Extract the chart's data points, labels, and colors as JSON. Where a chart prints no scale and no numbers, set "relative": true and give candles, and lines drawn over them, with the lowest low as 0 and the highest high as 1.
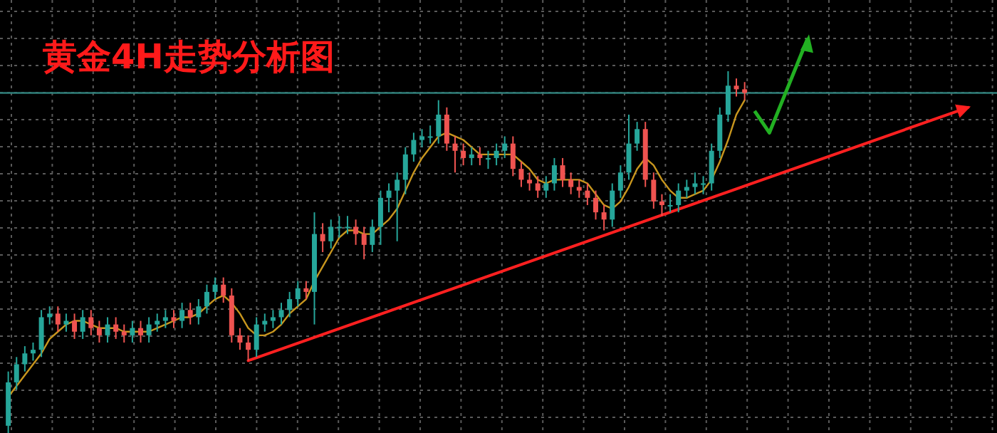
{
  "chart_data": {
    "type": "candlestick",
    "title": "黄金4H走势分析图",
    "relative": true,
    "grid": true,
    "categories": [
      null,
      null,
      null,
      null,
      null,
      null,
      null,
      null,
      null,
      null,
      null,
      null,
      null,
      null,
      null,
      null,
      null,
      null,
      null,
      null,
      null,
      null,
      null,
      null,
      null,
      null,
      null,
      null,
      null,
      null,
      null,
      null,
      null,
      null,
      null,
      null,
      null,
      null,
      null,
      null,
      null,
      null,
      null,
      null,
      null,
      null,
      null,
      null,
      null,
      null,
      null,
      null,
      null,
      null,
      null,
      null,
      null,
      null,
      null,
      null,
      null,
      null,
      null,
      null,
      null,
      null,
      null,
      null,
      null,
      null,
      null,
      null,
      null,
      null,
      null,
      null,
      null,
      null,
      null,
      null,
      null,
      null,
      null,
      null,
      null,
      null,
      null,
      null,
      null,
      null,
      null,
      null,
      null,
      null,
      null,
      null,
      null,
      null,
      null,
      null,
      null,
      null,
      null,
      null,
      null,
      null,
      null,
      null,
      null,
      null,
      null,
      null,
      null,
      null,
      null,
      null,
      null,
      null
    ],
    "ohlc": [
      [
        0.02,
        0.17,
        0,
        0.14
      ],
      [
        0.14,
        0.21,
        0.12,
        0.19
      ],
      [
        0.19,
        0.24,
        0.17,
        0.22
      ],
      [
        0.22,
        0.25,
        0.2,
        0.23
      ],
      [
        0.23,
        0.34,
        0.21,
        0.32
      ],
      [
        0.32,
        0.35,
        0.3,
        0.33
      ],
      [
        0.33,
        0.35,
        0.28,
        0.3
      ],
      [
        0.3,
        0.33,
        0.28,
        0.31
      ],
      [
        0.31,
        0.33,
        0.26,
        0.28
      ],
      [
        0.28,
        0.34,
        0.26,
        0.32
      ],
      [
        0.32,
        0.34,
        0.27,
        0.29
      ],
      [
        0.29,
        0.31,
        0.25,
        0.27
      ],
      [
        0.27,
        0.32,
        0.25,
        0.3
      ],
      [
        0.3,
        0.32,
        0.26,
        0.28
      ],
      [
        0.28,
        0.3,
        0.25,
        0.27
      ],
      [
        0.27,
        0.31,
        0.25,
        0.29
      ],
      [
        0.29,
        0.31,
        0.25,
        0.27
      ],
      [
        0.27,
        0.32,
        0.25,
        0.3
      ],
      [
        0.3,
        0.33,
        0.28,
        0.31
      ],
      [
        0.31,
        0.34,
        0.29,
        0.32
      ],
      [
        0.32,
        0.34,
        0.29,
        0.31
      ],
      [
        0.31,
        0.36,
        0.29,
        0.34
      ],
      [
        0.34,
        0.36,
        0.3,
        0.32
      ],
      [
        0.32,
        0.37,
        0.3,
        0.35
      ],
      [
        0.35,
        0.41,
        0.33,
        0.39
      ],
      [
        0.39,
        0.43,
        0.37,
        0.41
      ],
      [
        0.41,
        0.43,
        0.36,
        0.38
      ],
      [
        0.38,
        0.4,
        0.25,
        0.27
      ],
      [
        0.27,
        0.29,
        0.23,
        0.25
      ],
      [
        0.25,
        0.27,
        0.2,
        0.23
      ],
      [
        0.23,
        0.32,
        0.21,
        0.3
      ],
      [
        0.3,
        0.33,
        0.28,
        0.31
      ],
      [
        0.31,
        0.34,
        0.29,
        0.32
      ],
      [
        0.32,
        0.36,
        0.3,
        0.34
      ],
      [
        0.34,
        0.39,
        0.32,
        0.37
      ],
      [
        0.37,
        0.42,
        0.35,
        0.4
      ],
      [
        0.4,
        0.42,
        0.37,
        0.39
      ],
      [
        0.39,
        0.61,
        0.3,
        0.55
      ],
      [
        0.55,
        0.58,
        0.5,
        0.53
      ],
      [
        0.53,
        0.59,
        0.51,
        0.57
      ],
      [
        0.57,
        0.6,
        0.54,
        0.57
      ],
      [
        0.57,
        0.6,
        0.55,
        0.57
      ],
      [
        0.57,
        0.59,
        0.52,
        0.55
      ],
      [
        0.55,
        0.57,
        0.48,
        0.52
      ],
      [
        0.52,
        0.59,
        0.5,
        0.57
      ],
      [
        0.57,
        0.67,
        0.52,
        0.65
      ],
      [
        0.65,
        0.69,
        0.61,
        0.67
      ],
      [
        0.67,
        0.72,
        0.53,
        0.7
      ],
      [
        0.7,
        0.79,
        0.66,
        0.77
      ],
      [
        0.77,
        0.83,
        0.75,
        0.81
      ],
      [
        0.81,
        0.84,
        0.79,
        0.82
      ],
      [
        0.82,
        0.85,
        0.8,
        0.82
      ],
      [
        0.82,
        0.92,
        0.8,
        0.88
      ],
      [
        0.88,
        0.9,
        0.78,
        0.8
      ],
      [
        0.8,
        0.82,
        0.72,
        0.78
      ],
      [
        0.78,
        0.8,
        0.74,
        0.76
      ],
      [
        0.76,
        0.79,
        0.74,
        0.77
      ],
      [
        0.77,
        0.79,
        0.74,
        0.76
      ],
      [
        0.76,
        0.78,
        0.73,
        0.76
      ],
      [
        0.76,
        0.8,
        0.74,
        0.78
      ],
      [
        0.78,
        0.82,
        0.76,
        0.8
      ],
      [
        0.8,
        0.82,
        0.71,
        0.73
      ],
      [
        0.73,
        0.75,
        0.68,
        0.7
      ],
      [
        0.7,
        0.72,
        0.67,
        0.69
      ],
      [
        0.69,
        0.71,
        0.65,
        0.67
      ],
      [
        0.67,
        0.71,
        0.65,
        0.69
      ],
      [
        0.69,
        0.76,
        0.67,
        0.74
      ],
      [
        0.74,
        0.76,
        0.68,
        0.7
      ],
      [
        0.7,
        0.72,
        0.66,
        0.68
      ],
      [
        0.68,
        0.7,
        0.65,
        0.67
      ],
      [
        0.67,
        0.69,
        0.63,
        0.65
      ],
      [
        0.65,
        0.67,
        0.59,
        0.61
      ],
      [
        0.61,
        0.63,
        0.56,
        0.59
      ],
      [
        0.59,
        0.69,
        0.57,
        0.67
      ],
      [
        0.67,
        0.74,
        0.65,
        0.72
      ],
      [
        0.72,
        0.88,
        0.7,
        0.8
      ],
      [
        0.8,
        0.86,
        0.78,
        0.84
      ],
      [
        0.84,
        0.86,
        0.68,
        0.7
      ],
      [
        0.7,
        0.72,
        0.62,
        0.64
      ],
      [
        0.64,
        0.66,
        0.6,
        0.63
      ],
      [
        0.63,
        0.66,
        0.61,
        0.63
      ],
      [
        0.63,
        0.69,
        0.61,
        0.67
      ],
      [
        0.67,
        0.7,
        0.65,
        0.68
      ],
      [
        0.68,
        0.72,
        0.66,
        0.69
      ],
      [
        0.69,
        0.71,
        0.66,
        0.69
      ],
      [
        0.69,
        0.8,
        0.67,
        0.78
      ],
      [
        0.78,
        0.9,
        0.76,
        0.88
      ],
      [
        0.88,
        1.0,
        0.86,
        0.96
      ],
      [
        0.96,
        0.98,
        0.93,
        0.95
      ],
      [
        0.95,
        0.97,
        0.92,
        0.94
      ],
      null,
      null,
      null,
      null,
      null,
      null,
      null,
      null,
      null,
      null,
      null,
      null,
      null,
      null,
      null,
      null,
      null,
      null,
      null,
      null,
      null,
      null,
      null,
      null,
      null,
      null,
      null,
      null
    ],
    "colors": [
      "#26a69a",
      "#26a69a",
      "#26a69a",
      "#26a69a",
      "#26a69a",
      "#26a69a",
      "#ef5350",
      "#26a69a",
      "#ef5350",
      "#26a69a",
      "#ef5350",
      "#ef5350",
      "#26a69a",
      "#ef5350",
      "#ef5350",
      "#26a69a",
      "#ef5350",
      "#26a69a",
      "#26a69a",
      "#26a69a",
      "#ef5350",
      "#26a69a",
      "#ef5350",
      "#26a69a",
      "#26a69a",
      "#26a69a",
      "#ef5350",
      "#ef5350",
      "#ef5350",
      "#ef5350",
      "#26a69a",
      "#26a69a",
      "#26a69a",
      "#26a69a",
      "#26a69a",
      "#26a69a",
      "#ef5350",
      "#26a69a",
      "#ef5350",
      "#26a69a",
      "#26a69a",
      "#26a69a",
      "#ef5350",
      "#ef5350",
      "#26a69a",
      "#26a69a",
      "#26a69a",
      "#26a69a",
      "#26a69a",
      "#26a69a",
      "#26a69a",
      "#26a69a",
      "#26a69a",
      "#ef5350",
      "#ef5350",
      "#ef5350",
      "#26a69a",
      "#ef5350",
      "#26a69a",
      "#26a69a",
      "#26a69a",
      "#ef5350",
      "#ef5350",
      "#ef5350",
      "#ef5350",
      "#26a69a",
      "#26a69a",
      "#ef5350",
      "#ef5350",
      "#ef5350",
      "#ef5350",
      "#ef5350",
      "#ef5350",
      "#26a69a",
      "#26a69a",
      "#26a69a",
      "#26a69a",
      "#ef5350",
      "#ef5350",
      "#ef5350",
      "#26a69a",
      "#26a69a",
      "#26a69a",
      "#26a69a",
      "#26a69a",
      "#26a69a",
      "#26a69a",
      "#26a69a",
      "#ef5350",
      "#ef5350",
      null,
      null,
      null,
      null,
      null,
      null,
      null,
      null,
      null,
      null,
      null,
      null,
      null,
      null,
      null,
      null,
      null,
      null,
      null,
      null,
      null,
      null,
      null,
      null,
      null,
      null,
      null,
      null
    ],
    "series": [
      {
        "type": "line",
        "color": "#c8961e",
        "values": [
          0.1,
          0.13,
          0.16,
          0.19,
          0.22,
          0.26,
          0.28,
          0.3,
          0.31,
          0.31,
          0.3,
          0.29,
          0.29,
          0.29,
          0.28,
          0.28,
          0.28,
          0.28,
          0.29,
          0.3,
          0.31,
          0.32,
          0.32,
          0.33,
          0.35,
          0.37,
          0.38,
          0.36,
          0.33,
          0.29,
          0.27,
          0.27,
          0.28,
          0.3,
          0.33,
          0.35,
          0.37,
          0.42,
          0.46,
          0.5,
          0.54,
          0.56,
          0.56,
          0.55,
          0.55,
          0.57,
          0.59,
          0.62,
          0.67,
          0.72,
          0.76,
          0.79,
          0.82,
          0.83,
          0.82,
          0.81,
          0.79,
          0.77,
          0.77,
          0.77,
          0.77,
          0.77,
          0.75,
          0.73,
          0.7,
          0.69,
          0.7,
          0.7,
          0.7,
          0.7,
          0.69,
          0.66,
          0.63,
          0.62,
          0.64,
          0.68,
          0.73,
          0.76,
          0.74,
          0.7,
          0.67,
          0.65,
          0.65,
          0.66,
          0.67,
          0.7,
          0.75,
          0.81,
          0.88,
          0.92,
          null,
          null,
          null,
          null,
          null,
          null,
          null,
          null,
          null,
          null,
          null,
          null,
          null,
          null,
          null,
          null,
          null,
          null,
          null,
          null,
          null,
          null,
          null,
          null,
          null,
          null,
          null,
          null
        ]
      },
      {
        "type": "line",
        "color": "#ff2020",
        "values": [
          null,
          null,
          null,
          null,
          null,
          null,
          null,
          null,
          null,
          null,
          null,
          null,
          null,
          null,
          null,
          null,
          null,
          null,
          null,
          null,
          null,
          null,
          null,
          null,
          null,
          null,
          null,
          null,
          null,
          0.2,
          null,
          null,
          null,
          null,
          null,
          null,
          null,
          null,
          null,
          null,
          null,
          null,
          null,
          null,
          null,
          null,
          null,
          null,
          null,
          null,
          null,
          null,
          null,
          null,
          null,
          null,
          null,
          null,
          null,
          null,
          null,
          null,
          null,
          null,
          null,
          null,
          null,
          null,
          null,
          null,
          null,
          null,
          null,
          null,
          null,
          null,
          null,
          null,
          null,
          null,
          null,
          null,
          null,
          null,
          null,
          null,
          null,
          null,
          null,
          null,
          null,
          null,
          null,
          null,
          null,
          null,
          null,
          null,
          null,
          null,
          null,
          null,
          null,
          null,
          null,
          null,
          null,
          null,
          null,
          null,
          null,
          null,
          null,
          null,
          null,
          null,
          0.9,
          null
        ]
      }
    ],
    "ref_lines": [
      {
        "axis": "y",
        "value": 0.94,
        "color": "#2f7f7a"
      }
    ]
  }
}
